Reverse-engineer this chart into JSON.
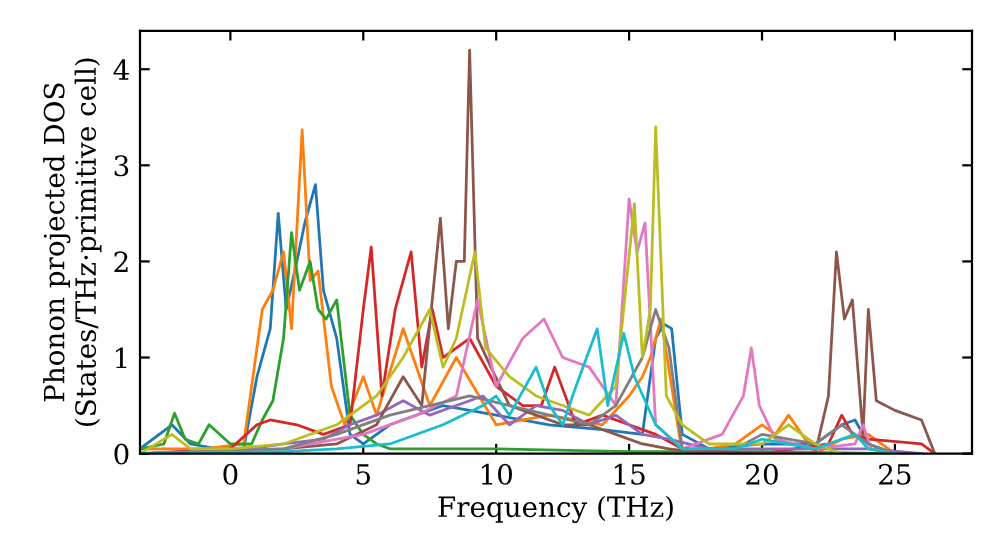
{
  "chart_data": {
    "type": "line",
    "xlabel": "Frequency (THz)",
    "ylabel": "Phonon projected DOS\n(States/THz·primitive cell)",
    "xlim": [
      -3.4,
      27.9
    ],
    "ylim": [
      0,
      4.4
    ],
    "xticks": [
      0,
      5,
      10,
      15,
      20,
      25
    ],
    "yticks": [
      0,
      1,
      2,
      3,
      4
    ],
    "grid": false,
    "marker": "none",
    "line_style": "solid",
    "series": [
      {
        "color": "#1f77b4",
        "x": [
          -3.4,
          -2.2,
          -1.5,
          -0.5,
          0.5,
          1.0,
          1.5,
          1.8,
          2.1,
          2.5,
          2.8,
          3.2,
          3.5,
          4.0,
          4.5,
          5.0,
          6.0,
          8.0,
          10.0,
          12.0,
          14.0,
          15.5,
          16.0,
          16.3,
          16.6,
          17.0,
          18.0,
          20.0,
          22.0,
          23.0,
          23.5,
          24.0,
          25.0
        ],
        "values": [
          0.05,
          0.3,
          0.1,
          0.05,
          0.05,
          0.8,
          1.3,
          2.5,
          1.5,
          2.0,
          2.4,
          2.8,
          1.7,
          1.2,
          0.2,
          0.1,
          0.3,
          0.5,
          0.4,
          0.3,
          0.25,
          0.2,
          1.2,
          1.35,
          1.3,
          0.2,
          0.05,
          0.1,
          0.1,
          0.3,
          0.35,
          0.1,
          0.0
        ]
      },
      {
        "color": "#ff7f0e",
        "x": [
          -3.4,
          -1.0,
          0.5,
          1.2,
          1.6,
          2.0,
          2.3,
          2.7,
          3.0,
          3.3,
          3.8,
          4.3,
          5.0,
          5.5,
          6.5,
          7.5,
          8.5,
          10.0,
          12.0,
          14.0,
          15.0,
          15.5,
          15.8,
          16.2,
          17.0,
          19.0,
          20.0,
          20.5,
          21.0,
          22.0,
          23.0,
          24.0,
          25.0
        ],
        "values": [
          0.05,
          0.05,
          0.1,
          1.5,
          1.7,
          2.1,
          1.3,
          3.37,
          1.8,
          1.9,
          0.7,
          0.3,
          0.8,
          0.4,
          1.3,
          0.5,
          1.0,
          0.3,
          0.4,
          0.3,
          0.6,
          0.8,
          1.0,
          1.4,
          0.0,
          0.1,
          0.3,
          0.2,
          0.4,
          0.0,
          0.15,
          0.2,
          0.0
        ]
      },
      {
        "color": "#2ca02c",
        "x": [
          -3.4,
          -2.5,
          -2.1,
          -1.7,
          -1.2,
          -0.8,
          0.0,
          0.8,
          1.2,
          1.6,
          2.0,
          2.3,
          2.6,
          3.0,
          3.3,
          3.6,
          4.0,
          4.5,
          5.0,
          5.5,
          6.0,
          8.0,
          10.0,
          15.0,
          20.0,
          25.0
        ],
        "values": [
          0.05,
          0.1,
          0.42,
          0.15,
          0.1,
          0.3,
          0.1,
          0.1,
          0.35,
          0.55,
          1.2,
          2.3,
          1.7,
          2.0,
          1.5,
          1.4,
          1.6,
          0.4,
          0.2,
          0.1,
          0.05,
          0.05,
          0.05,
          0.02,
          0.02,
          0.0
        ]
      },
      {
        "color": "#d62728",
        "x": [
          -3.4,
          0.0,
          1.0,
          1.5,
          2.5,
          3.5,
          4.5,
          5.0,
          5.3,
          5.7,
          6.2,
          6.8,
          7.2,
          7.6,
          8.0,
          9.0,
          10.0,
          11.0,
          11.7,
          12.2,
          13.0,
          14.0,
          15.0,
          16.0,
          17.0,
          20.0,
          22.5,
          23.0,
          23.4,
          24.0,
          26.0,
          26.5
        ],
        "values": [
          0.0,
          0.05,
          0.3,
          0.35,
          0.3,
          0.2,
          0.3,
          1.5,
          2.15,
          0.6,
          1.5,
          2.1,
          0.9,
          1.5,
          1.0,
          1.2,
          0.7,
          0.5,
          0.5,
          0.9,
          0.3,
          0.4,
          0.3,
          0.2,
          0.05,
          0.0,
          0.1,
          0.4,
          0.2,
          0.15,
          0.1,
          0.0
        ]
      },
      {
        "color": "#9467bd",
        "x": [
          -3.4,
          0.0,
          2.0,
          3.5,
          4.5,
          5.5,
          6.5,
          7.5,
          8.5,
          9.5,
          10.5,
          11.5,
          12.5,
          13.5,
          14.5,
          15.5,
          16.5,
          18.0,
          20.0,
          22.0,
          24.0,
          26.0
        ],
        "values": [
          0.0,
          0.02,
          0.1,
          0.15,
          0.3,
          0.4,
          0.55,
          0.4,
          0.5,
          0.6,
          0.3,
          0.5,
          0.45,
          0.3,
          0.4,
          0.2,
          0.15,
          0.05,
          0.05,
          0.05,
          0.05,
          0.0
        ]
      },
      {
        "color": "#8c564b",
        "x": [
          -3.4,
          0.0,
          2.0,
          4.0,
          5.5,
          6.5,
          7.2,
          7.9,
          8.2,
          8.5,
          8.8,
          9.0,
          9.3,
          9.8,
          10.5,
          11.5,
          12.5,
          13.5,
          14.5,
          15.5,
          16.5,
          18.0,
          20.0,
          22.0,
          22.5,
          22.8,
          23.1,
          23.4,
          23.8,
          24.0,
          24.3,
          25.0,
          26.0,
          26.5
        ],
        "values": [
          0.0,
          0.02,
          0.05,
          0.1,
          0.3,
          0.8,
          0.5,
          2.45,
          1.3,
          2.0,
          2.0,
          4.2,
          1.2,
          0.9,
          0.5,
          0.4,
          0.3,
          0.3,
          0.2,
          0.1,
          0.05,
          0.0,
          0.0,
          0.0,
          0.6,
          2.1,
          1.4,
          1.6,
          0.2,
          1.5,
          0.55,
          0.45,
          0.35,
          0.0
        ]
      },
      {
        "color": "#e377c2",
        "x": [
          -3.4,
          2.0,
          5.0,
          7.0,
          8.5,
          9.3,
          10.0,
          11.0,
          11.8,
          12.5,
          13.5,
          14.5,
          15.0,
          15.3,
          15.6,
          16.0,
          17.0,
          18.5,
          19.3,
          19.6,
          19.9,
          20.5,
          22.0,
          23.5,
          23.8,
          24.1,
          25.0
        ],
        "values": [
          0.0,
          0.05,
          0.2,
          0.4,
          0.6,
          1.6,
          0.7,
          1.2,
          1.4,
          1.0,
          0.9,
          0.5,
          2.65,
          2.1,
          2.4,
          0.3,
          0.05,
          0.2,
          0.6,
          1.1,
          0.5,
          0.15,
          0.05,
          0.1,
          0.3,
          0.05,
          0.0
        ]
      },
      {
        "color": "#7f7f7f",
        "x": [
          -3.4,
          2.0,
          4.0,
          6.0,
          7.5,
          9.0,
          10.5,
          12.0,
          13.5,
          14.5,
          15.5,
          16.0,
          16.5,
          17.0,
          19.0,
          20.0,
          22.0,
          23.0,
          24.0,
          25.0
        ],
        "values": [
          0.0,
          0.05,
          0.2,
          0.4,
          0.5,
          0.6,
          0.5,
          0.4,
          0.3,
          0.5,
          1.0,
          1.5,
          1.1,
          0.05,
          0.05,
          0.2,
          0.1,
          0.3,
          0.1,
          0.0
        ]
      },
      {
        "color": "#bcbd22",
        "x": [
          -3.4,
          -2.2,
          -1.5,
          0.0,
          2.0,
          4.0,
          5.5,
          6.5,
          7.5,
          8.0,
          8.5,
          9.2,
          9.6,
          10.5,
          11.5,
          12.5,
          13.5,
          14.5,
          15.2,
          15.5,
          15.8,
          16.0,
          16.4,
          17.0,
          18.0,
          20.0,
          21.0,
          22.0,
          23.0
        ],
        "values": [
          0.0,
          0.2,
          0.05,
          0.05,
          0.1,
          0.3,
          0.6,
          1.0,
          1.5,
          0.9,
          1.2,
          2.1,
          1.1,
          0.8,
          0.6,
          0.5,
          0.4,
          0.7,
          2.6,
          1.0,
          1.5,
          3.4,
          0.6,
          0.3,
          0.1,
          0.1,
          0.3,
          0.1,
          0.0
        ]
      },
      {
        "color": "#17becf",
        "x": [
          -3.4,
          2.0,
          4.0,
          6.0,
          8.0,
          9.5,
          10.0,
          10.5,
          11.5,
          12.0,
          12.5,
          13.0,
          13.8,
          14.2,
          14.8,
          15.2,
          16.0,
          17.0,
          19.0,
          20.0,
          22.0,
          23.5,
          24.0,
          25.0
        ],
        "values": [
          0.0,
          0.02,
          0.05,
          0.1,
          0.3,
          0.5,
          0.6,
          0.4,
          0.9,
          0.5,
          0.3,
          0.7,
          1.3,
          0.5,
          1.25,
          0.8,
          0.3,
          0.05,
          0.05,
          0.15,
          0.05,
          0.2,
          0.05,
          0.0
        ]
      }
    ]
  }
}
